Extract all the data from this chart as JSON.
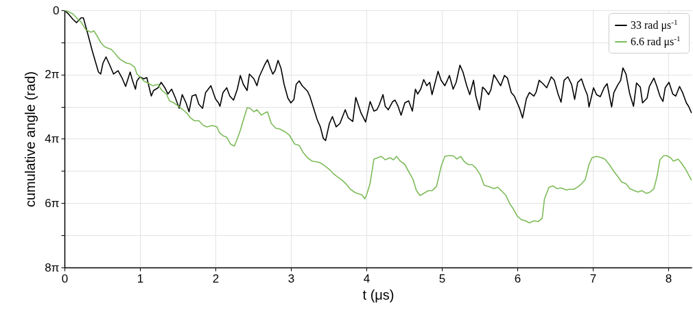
{
  "chart_data": {
    "type": "line",
    "xlabel": "t (μs)",
    "ylabel": "cumulative angle (rad)",
    "xlim": [
      0,
      8.31
    ],
    "xticks": [
      0,
      1,
      2,
      3,
      4,
      5,
      6,
      7,
      8
    ],
    "ylim": [
      25.133,
      0
    ],
    "yticks": [
      0,
      {
        "value": 3.142,
        "label": null
      },
      {
        "value": 6.283,
        "label": "2π"
      },
      {
        "value": 9.425,
        "label": null
      },
      {
        "value": 12.566,
        "label": "4π"
      },
      {
        "value": 15.708,
        "label": null
      },
      {
        "value": 18.85,
        "label": "6π"
      },
      {
        "value": 21.991,
        "label": null
      },
      {
        "value": 25.133,
        "label": "8π"
      }
    ],
    "grid": true,
    "legend": "top right",
    "series": [
      {
        "name": "33 rad μs$^{-1}$",
        "color": "#000000",
        "x": [
          0,
          0.05,
          0.11,
          0.16,
          0.22,
          0.25,
          0.31,
          0.37,
          0.45,
          0.48,
          0.51,
          0.55,
          0.6,
          0.65,
          0.71,
          0.76,
          0.81,
          0.87,
          0.9,
          0.94,
          0.96,
          1,
          1.05,
          1.09,
          1.15,
          1.18,
          1.24,
          1.28,
          1.33,
          1.37,
          1.42,
          1.47,
          1.52,
          1.56,
          1.61,
          1.65,
          1.69,
          1.74,
          1.78,
          1.83,
          1.87,
          1.94,
          2,
          2.04,
          2.06,
          2.1,
          2.15,
          2.19,
          2.24,
          2.29,
          2.33,
          2.37,
          2.42,
          2.45,
          2.51,
          2.55,
          2.58,
          2.65,
          2.69,
          2.73,
          2.76,
          2.79,
          2.83,
          2.87,
          2.91,
          2.96,
          3,
          3.04,
          3.07,
          3.11,
          3.15,
          3.22,
          3.25,
          3.31,
          3.35,
          3.39,
          3.43,
          3.46,
          3.51,
          3.55,
          3.6,
          3.65,
          3.72,
          3.76,
          3.82,
          3.86,
          3.93,
          3.99,
          4.05,
          4.1,
          4.14,
          4.17,
          4.22,
          4.25,
          4.29,
          4.35,
          4.38,
          4.42,
          4.46,
          4.51,
          4.56,
          4.61,
          4.65,
          4.68,
          4.72,
          4.76,
          4.8,
          4.84,
          4.87,
          4.95,
          4.99,
          5.04,
          5.07,
          5.1,
          5.15,
          5.19,
          5.24,
          5.28,
          5.33,
          5.37,
          5.42,
          5.45,
          5.5,
          5.54,
          5.57,
          5.62,
          5.65,
          5.69,
          5.74,
          5.78,
          5.83,
          5.87,
          5.92,
          5.96,
          6.03,
          6.07,
          6.12,
          6.16,
          6.22,
          6.25,
          6.29,
          6.34,
          6.39,
          6.45,
          6.49,
          6.54,
          6.58,
          6.62,
          6.67,
          6.72,
          6.76,
          6.8,
          6.85,
          6.89,
          6.93,
          6.95,
          7.01,
          7.05,
          7.1,
          7.15,
          7.19,
          7.25,
          7.28,
          7.33,
          7.37,
          7.4,
          7.44,
          7.49,
          7.54,
          7.58,
          7.63,
          7.66,
          7.72,
          7.75,
          7.81,
          7.85,
          7.89,
          7.93,
          7.96,
          8.01,
          8.06,
          8.1,
          8.15,
          8.19,
          8.24,
          8.27,
          8.31
        ],
        "values": [
          0,
          0.34,
          0.87,
          1.21,
          0.74,
          0.74,
          2.35,
          4.02,
          6.03,
          6.23,
          5.16,
          4.56,
          5.36,
          6.23,
          5.9,
          6.57,
          7.44,
          6.03,
          6.84,
          7.71,
          6.9,
          6.5,
          6.7,
          6.57,
          8.38,
          7.84,
          7.57,
          7.04,
          7.57,
          8.18,
          7.71,
          8.58,
          9.58,
          8.24,
          9.05,
          9.92,
          8.38,
          8.24,
          9.18,
          9.58,
          8.04,
          7.37,
          8.65,
          9.05,
          9.38,
          8.04,
          7.57,
          8.38,
          8.78,
          7.71,
          6.37,
          7.24,
          7.84,
          6.23,
          6.7,
          7.37,
          6.5,
          5.36,
          4.83,
          5.7,
          6.23,
          5.9,
          4.89,
          5.7,
          7.24,
          8.58,
          9.05,
          8.71,
          7.24,
          6.9,
          7.37,
          7.91,
          8.38,
          9.78,
          10.72,
          11.39,
          12.53,
          12.73,
          11.06,
          10.39,
          11.39,
          11.06,
          9.72,
          10.52,
          10.86,
          8.51,
          10.05,
          10.92,
          8.91,
          9.85,
          9.72,
          9.25,
          8.24,
          9.38,
          9.72,
          8.91,
          8.78,
          9.38,
          10.25,
          9.05,
          8.85,
          9.85,
          7.71,
          8.18,
          7.71,
          6.77,
          7.37,
          7.04,
          8.24,
          5.96,
          6.84,
          7.37,
          6.9,
          6.37,
          7.71,
          7.04,
          5.36,
          6.03,
          7.37,
          8.24,
          6.84,
          8.38,
          9.72,
          7.51,
          7.71,
          8.24,
          7.77,
          6.3,
          6.9,
          7.37,
          6.37,
          6.63,
          8.04,
          8.38,
          9.58,
          10.52,
          8.65,
          8.04,
          8.38,
          7.98,
          6.84,
          7.17,
          7.57,
          6.5,
          6.84,
          8.18,
          8.98,
          6.84,
          6.5,
          7.24,
          8.71,
          7.04,
          6.7,
          7.57,
          8.31,
          9.45,
          7.57,
          8.24,
          8.44,
          7.57,
          7.17,
          9.45,
          8.04,
          7.31,
          6.84,
          5.63,
          6.23,
          8.18,
          9.38,
          7.1,
          7.51,
          9.05,
          8.58,
          7.44,
          6.63,
          7.44,
          8.38,
          8.91,
          7.57,
          7.04,
          8.18,
          8.38,
          7.44,
          8.04,
          9.05,
          9.38,
          10.05
        ]
      },
      {
        "name": "6.6 rad μs$^{-1}$",
        "color": "#7dbb58",
        "x": [
          0,
          0.05,
          0.11,
          0.16,
          0.22,
          0.28,
          0.35,
          0.39,
          0.43,
          0.48,
          0.53,
          0.57,
          0.62,
          0.67,
          0.72,
          0.76,
          0.82,
          0.87,
          0.93,
          0.96,
          1,
          1.05,
          1.12,
          1.17,
          1.24,
          1.29,
          1.35,
          1.39,
          1.45,
          1.51,
          1.57,
          1.62,
          1.67,
          1.72,
          1.78,
          1.84,
          1.89,
          1.96,
          2.02,
          2.05,
          2.1,
          2.15,
          2.2,
          2.25,
          2.28,
          2.33,
          2.37,
          2.42,
          2.46,
          2.51,
          2.55,
          2.61,
          2.65,
          2.69,
          2.74,
          2.8,
          2.85,
          2.92,
          2.98,
          3.05,
          3.11,
          3.16,
          3.22,
          3.28,
          3.35,
          3.4,
          3.45,
          3.51,
          3.56,
          3.62,
          3.67,
          3.73,
          3.78,
          3.84,
          3.88,
          3.94,
          3.98,
          4.01,
          4.05,
          4.1,
          4.15,
          4.2,
          4.25,
          4.31,
          4.36,
          4.4,
          4.45,
          4.51,
          4.56,
          4.62,
          4.66,
          4.71,
          4.76,
          4.82,
          4.87,
          4.93,
          4.99,
          5.04,
          5.09,
          5.15,
          5.2,
          5.25,
          5.3,
          5.35,
          5.4,
          5.45,
          5.51,
          5.56,
          5.62,
          5.69,
          5.74,
          5.79,
          5.85,
          5.9,
          5.95,
          6,
          6.05,
          6.11,
          6.16,
          6.22,
          6.28,
          6.33,
          6.36,
          6.42,
          6.47,
          6.53,
          6.58,
          6.65,
          6.69,
          6.75,
          6.81,
          6.85,
          6.9,
          6.95,
          6.99,
          7.05,
          7.12,
          7.16,
          7.22,
          7.28,
          7.33,
          7.38,
          7.44,
          7.49,
          7.55,
          7.6,
          7.65,
          7.71,
          7.76,
          7.81,
          7.85,
          7.89,
          7.94,
          7.98,
          8.03,
          8.07,
          8.13,
          8.17,
          8.22,
          8.26,
          8.31
        ],
        "values": [
          0,
          0.13,
          0.34,
          0.74,
          1.14,
          1.88,
          2.14,
          2.01,
          2.48,
          3.15,
          3.55,
          3.69,
          3.82,
          4.22,
          4.69,
          4.89,
          5.16,
          5.23,
          5.56,
          6.23,
          6.5,
          6.9,
          7.17,
          7.37,
          7.24,
          7.84,
          8.18,
          8.85,
          9.05,
          9.38,
          9.72,
          10.05,
          10.52,
          10.79,
          10.79,
          11.26,
          11.39,
          11.26,
          11.39,
          11.93,
          12.26,
          12.4,
          13.07,
          13.27,
          12.73,
          11.73,
          10.72,
          9.52,
          9.58,
          9.92,
          9.72,
          10.25,
          10.05,
          9.92,
          11.06,
          11.53,
          11.59,
          11.86,
          12.2,
          13.07,
          13.2,
          13.87,
          14.41,
          14.74,
          14.81,
          14.95,
          15.21,
          15.55,
          15.95,
          16.29,
          16.55,
          16.96,
          17.43,
          17.76,
          17.89,
          18.03,
          18.43,
          17.89,
          16.89,
          14.54,
          14.41,
          14.28,
          14.61,
          14.41,
          14.61,
          14.28,
          14.74,
          15.08,
          15.75,
          16.55,
          17.56,
          18.1,
          17.89,
          17.63,
          17.63,
          17.22,
          15.28,
          14.28,
          14.21,
          14.21,
          14.54,
          14.28,
          14.81,
          15.08,
          15.08,
          15.41,
          16.08,
          17.09,
          17.22,
          17.43,
          17.29,
          17.63,
          18.1,
          18.9,
          19.44,
          20.11,
          20.44,
          20.58,
          20.78,
          20.58,
          20.64,
          20.31,
          18.43,
          17.29,
          17.16,
          17.43,
          17.36,
          17.56,
          17.49,
          17.49,
          17.22,
          16.96,
          16.55,
          15.08,
          14.41,
          14.28,
          14.41,
          14.54,
          15.08,
          15.75,
          16.22,
          16.76,
          16.96,
          17.43,
          17.63,
          17.76,
          17.63,
          17.89,
          17.76,
          17.43,
          16.29,
          14.61,
          14.21,
          14.21,
          14.41,
          14.74,
          14.54,
          14.88,
          15.41,
          15.95,
          16.62
        ]
      }
    ]
  }
}
